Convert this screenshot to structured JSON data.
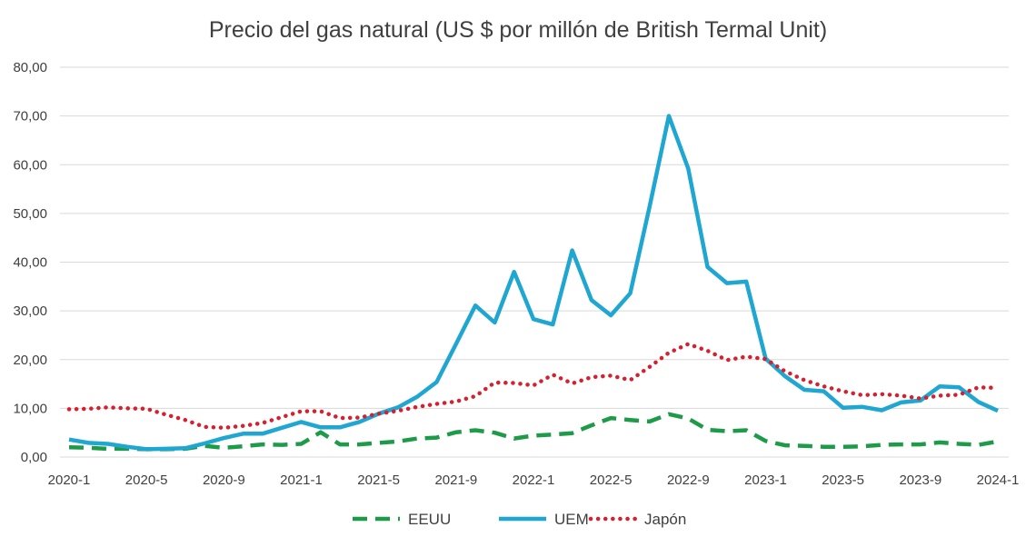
{
  "chart_data": {
    "type": "line",
    "title": "Precio del gas natural (US $ por millón de British Termal Unit)",
    "xlabel": "",
    "ylabel": "",
    "ylim": [
      0,
      80
    ],
    "yticks": [
      "0,00",
      "10,00",
      "20,00",
      "30,00",
      "40,00",
      "50,00",
      "60,00",
      "70,00",
      "80,00"
    ],
    "x": [
      "2020-1",
      "2020-2",
      "2020-3",
      "2020-4",
      "2020-5",
      "2020-6",
      "2020-7",
      "2020-8",
      "2020-9",
      "2020-10",
      "2020-11",
      "2020-12",
      "2021-1",
      "2021-2",
      "2021-3",
      "2021-4",
      "2021-5",
      "2021-6",
      "2021-7",
      "2021-8",
      "2021-9",
      "2021-10",
      "2021-11",
      "2021-12",
      "2022-1",
      "2022-2",
      "2022-3",
      "2022-4",
      "2022-5",
      "2022-6",
      "2022-7",
      "2022-8",
      "2022-9",
      "2022-10",
      "2022-11",
      "2022-12",
      "2023-1",
      "2023-2",
      "2023-3",
      "2023-4",
      "2023-5",
      "2023-6",
      "2023-7",
      "2023-8",
      "2023-9",
      "2023-10",
      "2023-11",
      "2023-12",
      "2024-1"
    ],
    "xtick_labels": [
      "2020-1",
      "2020-5",
      "2020-9",
      "2021-1",
      "2021-5",
      "2021-9",
      "2022-1",
      "2022-5",
      "2022-9",
      "2023-1",
      "2023-5",
      "2023-9",
      "2024-1"
    ],
    "grid": true,
    "legend_position": "bottom",
    "series": [
      {
        "name": "EEUU",
        "color": "#1e9b48",
        "style": "dashed",
        "values": [
          2.0,
          1.9,
          1.7,
          1.7,
          1.6,
          1.6,
          1.7,
          2.3,
          1.9,
          2.2,
          2.6,
          2.5,
          2.7,
          5.1,
          2.6,
          2.6,
          2.9,
          3.2,
          3.8,
          4.0,
          5.1,
          5.5,
          5.0,
          3.8,
          4.4,
          4.6,
          4.9,
          6.5,
          8.0,
          7.6,
          7.3,
          8.8,
          7.9,
          5.6,
          5.3,
          5.5,
          3.3,
          2.4,
          2.3,
          2.1,
          2.1,
          2.2,
          2.5,
          2.6,
          2.6,
          3.0,
          2.7,
          2.5,
          3.2
        ]
      },
      {
        "name": "UEM",
        "color": "#1fa6d1",
        "style": "solid",
        "values": [
          3.6,
          2.9,
          2.7,
          2.1,
          1.6,
          1.7,
          1.8,
          2.8,
          3.9,
          4.8,
          4.8,
          6.0,
          7.2,
          6.1,
          6.1,
          7.2,
          8.9,
          10.2,
          12.4,
          15.4,
          23.2,
          31.1,
          27.6,
          38.0,
          28.3,
          27.2,
          42.4,
          32.2,
          29.1,
          33.6,
          51.4,
          70.0,
          59.2,
          39.0,
          35.7,
          36.0,
          20.2,
          16.6,
          13.8,
          13.5,
          10.1,
          10.3,
          9.6,
          11.2,
          11.6,
          14.5,
          14.3,
          11.3,
          9.5
        ]
      },
      {
        "name": "Japón",
        "color": "#d81f2e",
        "style": "dotted",
        "values": [
          9.8,
          9.9,
          10.2,
          10.0,
          9.9,
          8.7,
          7.6,
          6.2,
          6.0,
          6.4,
          7.0,
          8.2,
          9.4,
          9.4,
          8.0,
          8.1,
          8.9,
          9.5,
          10.3,
          10.9,
          11.4,
          12.5,
          15.3,
          15.2,
          14.7,
          16.9,
          15.1,
          16.4,
          16.7,
          15.8,
          18.5,
          21.4,
          23.2,
          21.8,
          19.9,
          20.6,
          20.1,
          17.6,
          15.8,
          14.5,
          13.5,
          12.7,
          12.9,
          12.6,
          12.0,
          12.6,
          12.8,
          14.3,
          14.2
        ]
      }
    ]
  }
}
